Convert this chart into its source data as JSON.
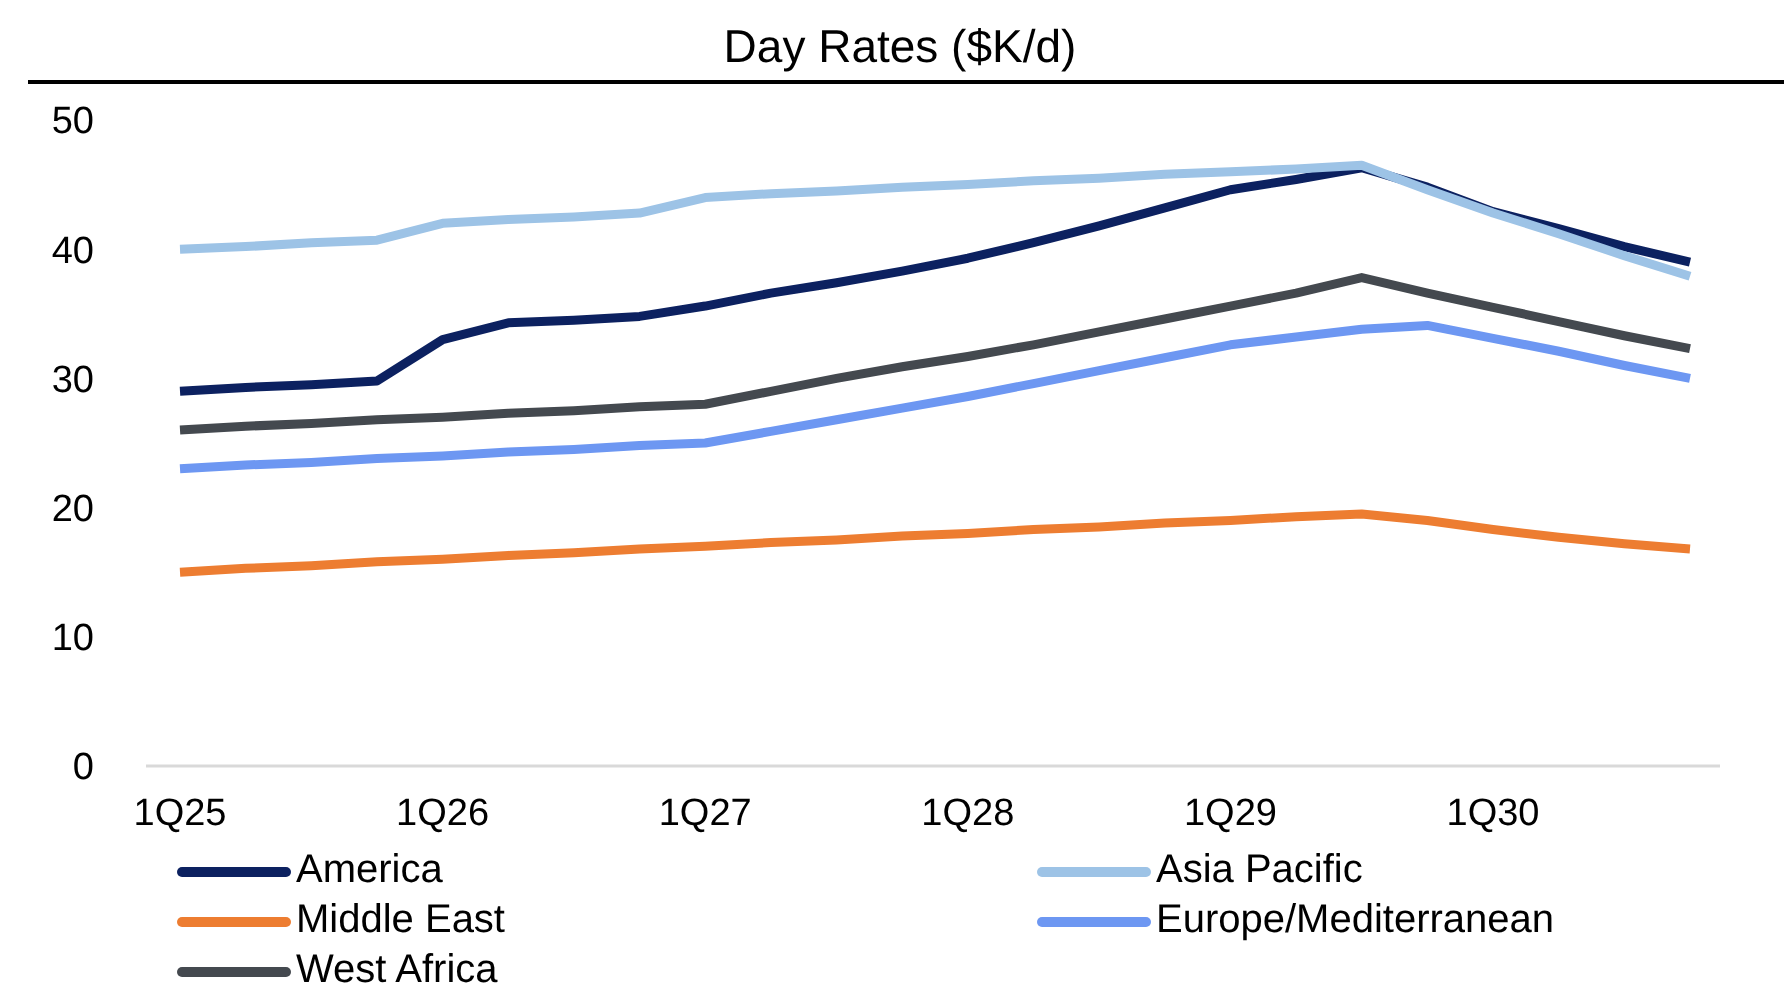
{
  "chart_data": {
    "type": "line",
    "title": "Day Rates ($K/d)",
    "categories": [
      "1Q25",
      null,
      null,
      null,
      "1Q26",
      null,
      null,
      null,
      "1Q27",
      null,
      null,
      null,
      "1Q28",
      null,
      null,
      null,
      "1Q29",
      null,
      null,
      null,
      "1Q30",
      null,
      null,
      null
    ],
    "series": [
      {
        "name": "America",
        "color": "#0c2160",
        "values": [
          29.0,
          29.3,
          29.5,
          29.8,
          33.0,
          34.3,
          34.5,
          34.8,
          35.6,
          36.6,
          37.4,
          38.3,
          39.3,
          40.5,
          41.8,
          43.2,
          44.6,
          45.4,
          46.3,
          44.8,
          42.9,
          41.6,
          40.2,
          39.0
        ]
      },
      {
        "name": "Asia Pacific",
        "color": "#9dc3e6",
        "values": [
          40.0,
          40.2,
          40.5,
          40.7,
          42.0,
          42.3,
          42.5,
          42.8,
          44.0,
          44.3,
          44.5,
          44.8,
          45.0,
          45.3,
          45.5,
          45.8,
          46.0,
          46.2,
          46.5,
          44.6,
          42.8,
          41.2,
          39.5,
          37.9
        ]
      },
      {
        "name": "Middle East",
        "color": "#ed7d31",
        "values": [
          15.0,
          15.3,
          15.5,
          15.8,
          16.0,
          16.3,
          16.5,
          16.8,
          17.0,
          17.3,
          17.5,
          17.8,
          18.0,
          18.3,
          18.5,
          18.8,
          19.0,
          19.3,
          19.5,
          19.0,
          18.3,
          17.7,
          17.2,
          16.8
        ]
      },
      {
        "name": "Europe/Mediterranean",
        "color": "#6d97f2",
        "values": [
          23.0,
          23.3,
          23.5,
          23.8,
          24.0,
          24.3,
          24.5,
          24.8,
          25.0,
          25.9,
          26.8,
          27.7,
          28.6,
          29.6,
          30.6,
          31.6,
          32.6,
          33.2,
          33.8,
          34.1,
          33.1,
          32.1,
          31.0,
          30.0
        ]
      },
      {
        "name": "West Africa",
        "color": "#44494f",
        "values": [
          26.0,
          26.3,
          26.5,
          26.8,
          27.0,
          27.3,
          27.5,
          27.8,
          28.0,
          29.0,
          30.0,
          30.9,
          31.7,
          32.6,
          33.6,
          34.6,
          35.6,
          36.6,
          37.8,
          36.6,
          35.5,
          34.4,
          33.3,
          32.3
        ]
      }
    ],
    "ylim": [
      0,
      50
    ],
    "yticks": [
      0,
      10,
      20,
      30,
      40,
      50
    ],
    "grid": false,
    "legend": "bottom",
    "marker": "none",
    "line_style": "solid"
  }
}
